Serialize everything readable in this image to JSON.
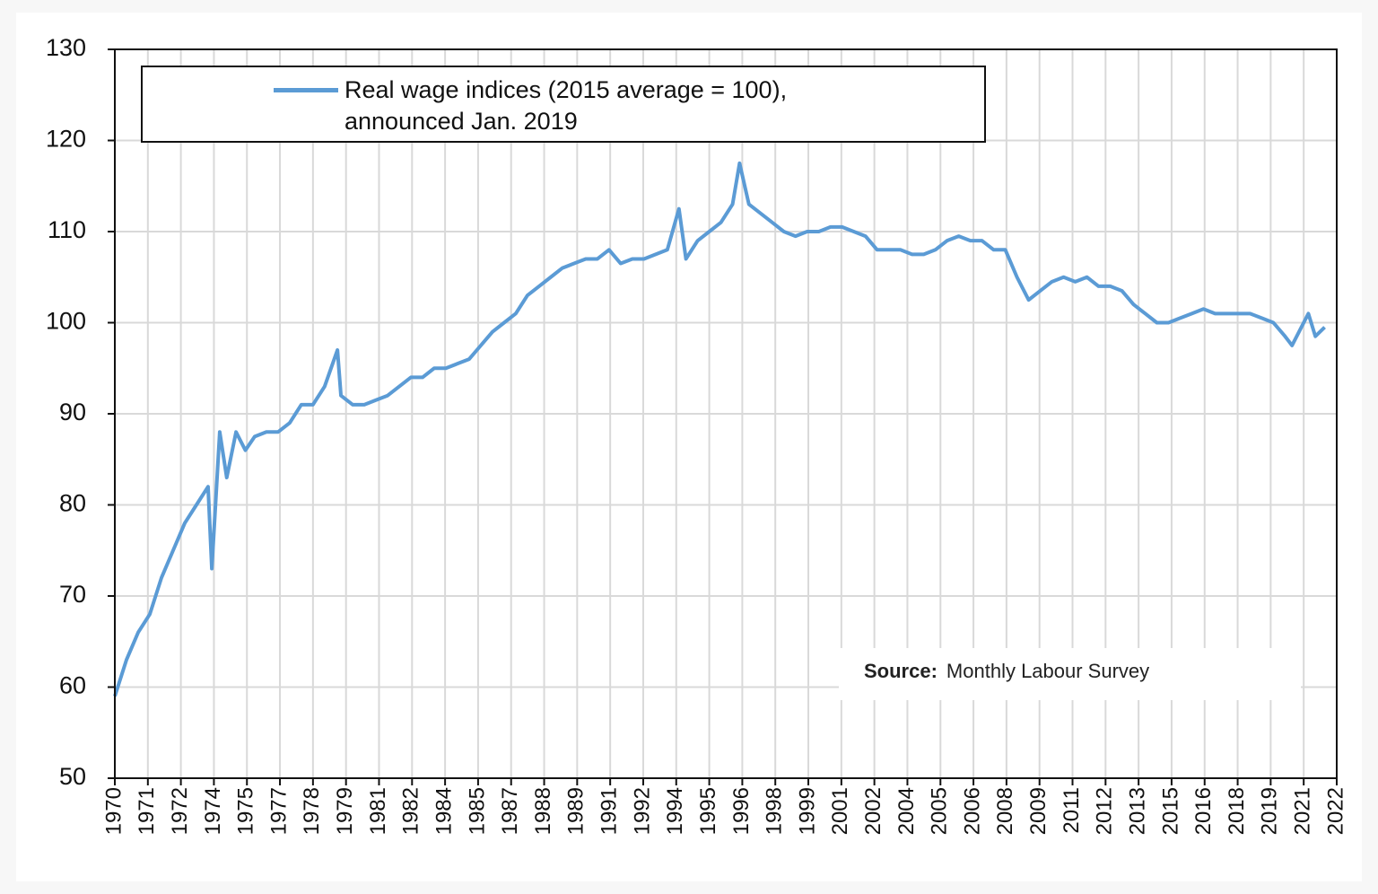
{
  "chart_data": {
    "type": "line",
    "x": [
      1970.0,
      1970.5,
      1971.0,
      1971.5,
      1972.0,
      1972.5,
      1973.0,
      1973.5,
      1974.0,
      1974.16,
      1974.5,
      1974.8,
      1975.2,
      1975.6,
      1976.0,
      1976.5,
      1977.0,
      1977.5,
      1978.0,
      1978.5,
      1979.0,
      1979.55,
      1979.7,
      1980.2,
      1980.7,
      1981.2,
      1981.7,
      1982.2,
      1982.7,
      1983.2,
      1983.7,
      1984.2,
      1984.7,
      1985.2,
      1985.7,
      1986.2,
      1986.7,
      1987.2,
      1987.7,
      1988.2,
      1988.7,
      1989.2,
      1989.7,
      1990.2,
      1990.7,
      1991.2,
      1991.7,
      1992.2,
      1992.7,
      1993.2,
      1993.7,
      1994.2,
      1994.5,
      1995.0,
      1995.5,
      1996.0,
      1996.5,
      1996.8,
      1997.2,
      1997.7,
      1998.2,
      1998.7,
      1999.2,
      1999.7,
      2000.2,
      2000.7,
      2001.2,
      2001.7,
      2002.2,
      2002.7,
      2003.2,
      2003.7,
      2004.2,
      2004.7,
      2005.2,
      2005.7,
      2006.2,
      2006.7,
      2007.2,
      2007.7,
      2008.2,
      2008.7,
      2009.2,
      2009.7,
      2010.2,
      2010.7,
      2011.2,
      2011.7,
      2012.2,
      2012.7,
      2013.2,
      2013.7,
      2014.2,
      2014.7,
      2015.2,
      2015.7,
      2016.2,
      2016.7,
      2017.2,
      2017.7,
      2018.2,
      2018.7,
      2019.2,
      2019.7,
      2020.2,
      2020.5,
      2020.9,
      2021.2,
      2021.5,
      2021.9
    ],
    "series": [
      {
        "name": "Real wage indices (2015 average = 100), announced Jan. 2019",
        "color": "#5b9bd5",
        "values": [
          59,
          63,
          66,
          68,
          72,
          75,
          78,
          80,
          82,
          73,
          88,
          83,
          88,
          86,
          87.5,
          88,
          88,
          89,
          91,
          91,
          93,
          97,
          92,
          91,
          91,
          91.5,
          92,
          93,
          94,
          94,
          95,
          95,
          95.5,
          96,
          97.5,
          99,
          100,
          101,
          103,
          104,
          105,
          106,
          106.5,
          107,
          107,
          108,
          106.5,
          107,
          107,
          107.5,
          108,
          112.5,
          107,
          109,
          110,
          111,
          113,
          117.5,
          113,
          112,
          111,
          110,
          109.5,
          110,
          110,
          110.5,
          110.5,
          110,
          109.5,
          108,
          108,
          108,
          107.5,
          107.5,
          108,
          109,
          109.5,
          109,
          109,
          108,
          108,
          105,
          102.5,
          103.5,
          104.5,
          105,
          104.5,
          105,
          104,
          104,
          103.5,
          102,
          101,
          100,
          100,
          100.5,
          101,
          101.5,
          101,
          101,
          101,
          101,
          100.5,
          100,
          98.5,
          97.5,
          99.5,
          101,
          98.5,
          99.5
        ]
      }
    ],
    "xlim": [
      1970,
      2022.417
    ],
    "xticks": [
      {
        "value": 1970,
        "label": "1970"
      },
      {
        "value": 1971.417,
        "label": "1971"
      },
      {
        "value": 1972.833,
        "label": "1972"
      },
      {
        "value": 1974.25,
        "label": "1974"
      },
      {
        "value": 1975.667,
        "label": "1975"
      },
      {
        "value": 1977.083,
        "label": "1977"
      },
      {
        "value": 1978.5,
        "label": "1978"
      },
      {
        "value": 1979.917,
        "label": "1979"
      },
      {
        "value": 1981.333,
        "label": "1981"
      },
      {
        "value": 1982.75,
        "label": "1982"
      },
      {
        "value": 1984.167,
        "label": "1984"
      },
      {
        "value": 1985.583,
        "label": "1985"
      },
      {
        "value": 1987,
        "label": "1987"
      },
      {
        "value": 1988.417,
        "label": "1988"
      },
      {
        "value": 1989.833,
        "label": "1989"
      },
      {
        "value": 1991.25,
        "label": "1991"
      },
      {
        "value": 1992.667,
        "label": "1992"
      },
      {
        "value": 1994.083,
        "label": "1994"
      },
      {
        "value": 1995.5,
        "label": "1995"
      },
      {
        "value": 1996.917,
        "label": "1996"
      },
      {
        "value": 1998.333,
        "label": "1998"
      },
      {
        "value": 1999.75,
        "label": "1999"
      },
      {
        "value": 2001.167,
        "label": "2001"
      },
      {
        "value": 2002.583,
        "label": "2002"
      },
      {
        "value": 2004,
        "label": "2004"
      },
      {
        "value": 2005.417,
        "label": "2005"
      },
      {
        "value": 2006.833,
        "label": "2006"
      },
      {
        "value": 2008.25,
        "label": "2008"
      },
      {
        "value": 2009.667,
        "label": "2009"
      },
      {
        "value": 2011.083,
        "label": "2011"
      },
      {
        "value": 2012.5,
        "label": "2012"
      },
      {
        "value": 2013.917,
        "label": "2013"
      },
      {
        "value": 2015.333,
        "label": "2015"
      },
      {
        "value": 2016.75,
        "label": "2016"
      },
      {
        "value": 2018.167,
        "label": "2018"
      },
      {
        "value": 2019.583,
        "label": "2019"
      },
      {
        "value": 2021,
        "label": "2021"
      },
      {
        "value": 2022.417,
        "label": "2022"
      }
    ],
    "ylim": [
      50,
      130
    ],
    "yticks": [
      50,
      60,
      70,
      80,
      90,
      100,
      110,
      120,
      130
    ],
    "grid": true,
    "legend": "top-left",
    "source": {
      "label": "Source:",
      "text": "Monthly Labour Survey"
    }
  }
}
